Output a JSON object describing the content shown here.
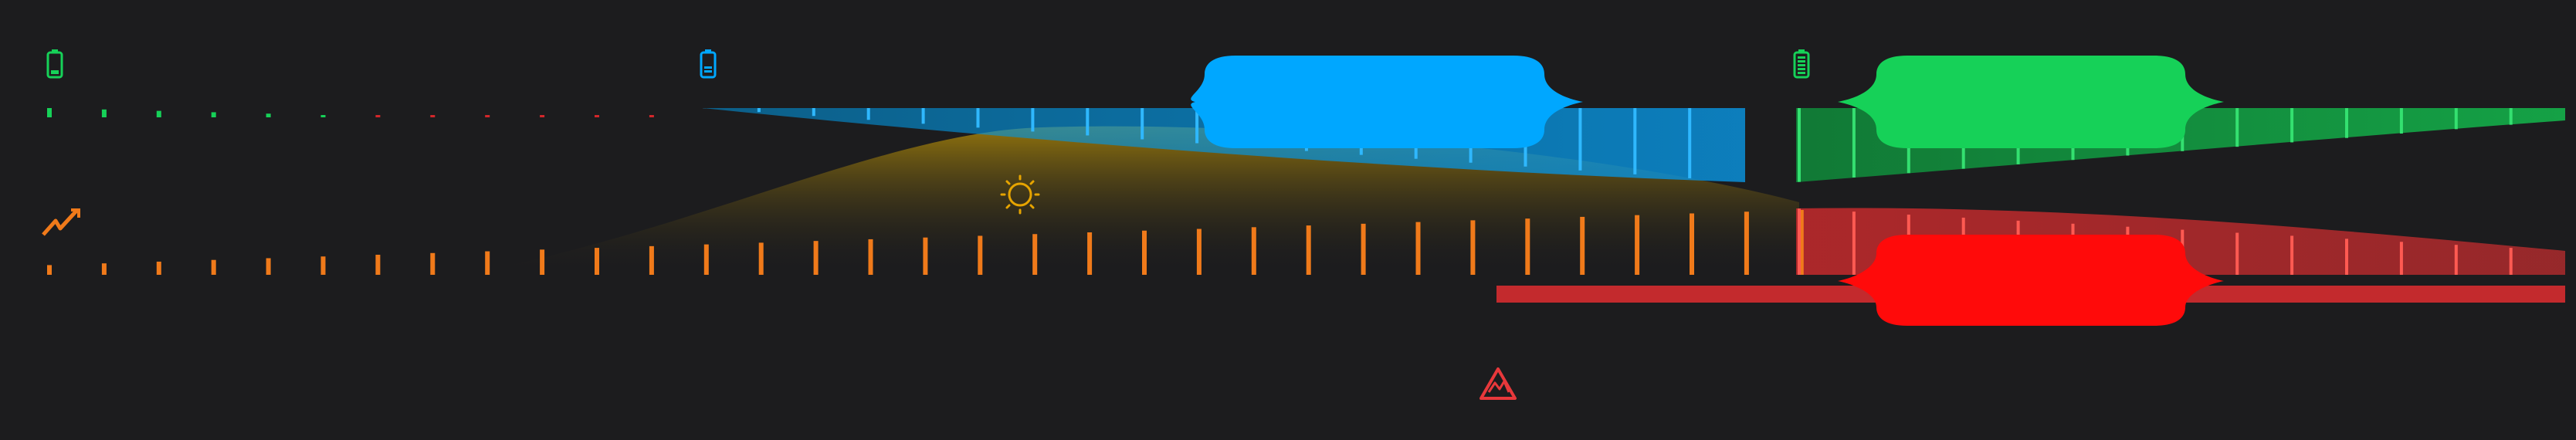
{
  "colors": {
    "background": "#1c1c1e",
    "battery_green": "#16d158",
    "battery_blue": "#00a7ff",
    "battery_low_red": "#d3262a",
    "solar_orange": "#f07a1a",
    "solar_glow": "#8a6a10",
    "grid_red": "#ff0a0a",
    "grid_red_dim": "#b3282b",
    "sun_yellow": "#e6a400",
    "alert_red": "#e8383b"
  },
  "icons": {
    "battery_green": "battery-icon",
    "battery_blue": "battery-icon",
    "battery_full": "battery-full-icon",
    "solar": "lightning-icon",
    "sun": "sun-icon",
    "alert": "mountain-alert-icon"
  },
  "rows": {
    "battery_level": {
      "green_segment_count": 6,
      "red_segment_count": 6,
      "blue_level_fraction": 0.55,
      "green_level_fraction": 0.85
    },
    "solar_output": {
      "bar_count": 33,
      "min_fraction": 0.15,
      "max_fraction": 1.0
    },
    "grid": {
      "red_bar_count": 15,
      "start_fraction": 0.58
    }
  },
  "highlights": [
    {
      "name": "blue-highlight-pill",
      "color": "#00a7ff"
    },
    {
      "name": "green-highlight-pill",
      "color": "#16d158"
    },
    {
      "name": "red-highlight-pill",
      "color": "#ff0a0a"
    }
  ]
}
